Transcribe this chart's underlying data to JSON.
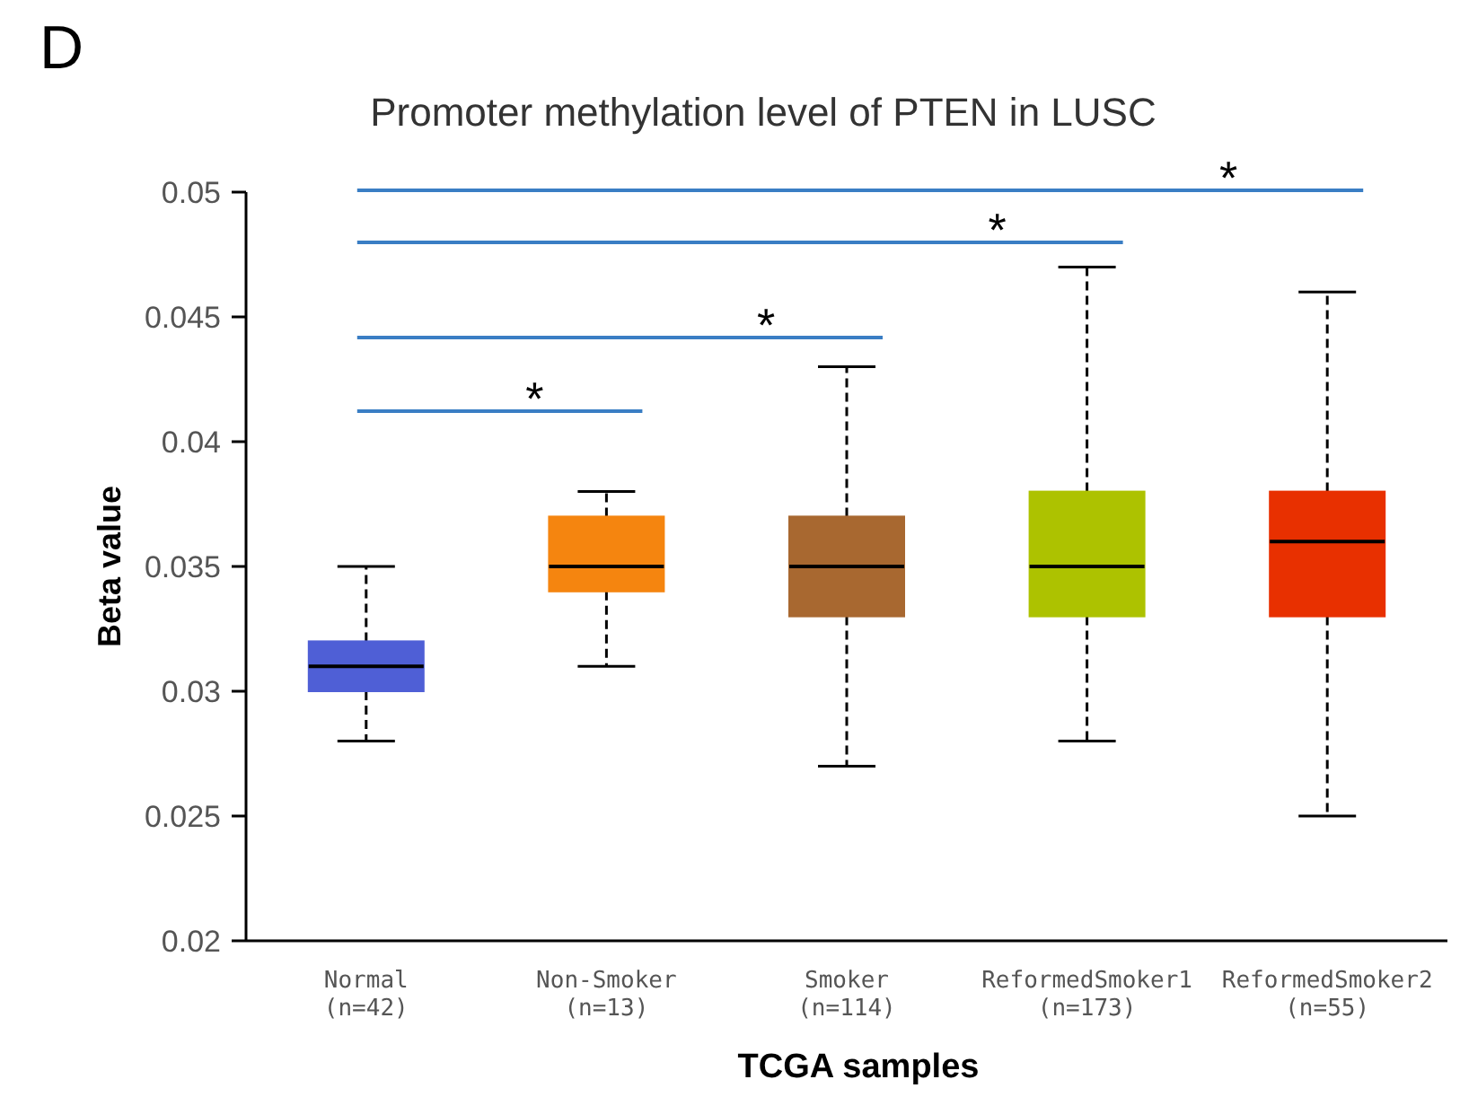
{
  "chart_data": {
    "type": "box",
    "title": "Promoter methylation level of PTEN in LUSC",
    "xlabel": "TCGA samples",
    "ylabel": "Beta value",
    "categories": [
      "Normal\n(n=42)",
      "Non-Smoker\n(n=13)",
      "Smoker\n(n=114)",
      "ReformedSmoker1\n(n=173)",
      "ReformedSmoker2\n(n=55)"
    ],
    "colors": [
      "#4f5fd6",
      "#f5850f",
      "#a86830",
      "#adc200",
      "#e83000"
    ],
    "boxes": [
      {
        "low": 0.028,
        "q1": 0.03,
        "median": 0.031,
        "q3": 0.032,
        "high": 0.035
      },
      {
        "low": 0.031,
        "q1": 0.034,
        "median": 0.035,
        "q3": 0.037,
        "high": 0.038
      },
      {
        "low": 0.027,
        "q1": 0.033,
        "median": 0.035,
        "q3": 0.037,
        "high": 0.043
      },
      {
        "low": 0.028,
        "q1": 0.033,
        "median": 0.035,
        "q3": 0.038,
        "high": 0.047
      },
      {
        "low": 0.025,
        "q1": 0.033,
        "median": 0.036,
        "q3": 0.038,
        "high": 0.046
      }
    ],
    "ylim": [
      0.02,
      0.05
    ],
    "yticks": [
      0.02,
      0.025,
      0.03,
      0.035,
      0.04,
      0.045,
      0.05
    ],
    "grid": false,
    "annotations": [
      "D",
      "*",
      "*",
      "*",
      "*"
    ]
  }
}
